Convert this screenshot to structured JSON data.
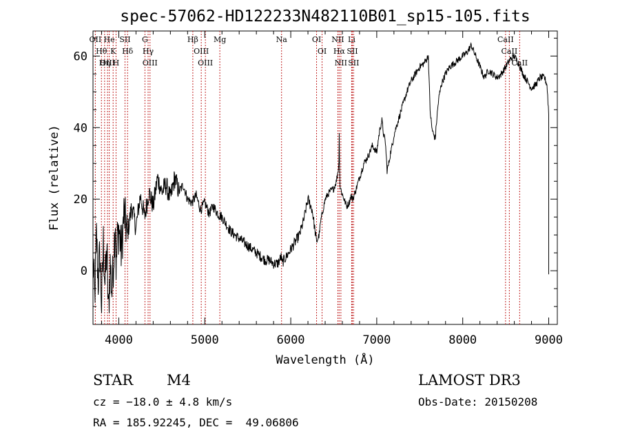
{
  "title": "spec-57062-HD122233N482110B01_sp15-105.fits",
  "info": {
    "object_class": "STAR",
    "subclass": "M4",
    "cz": "cz = −18.0 ± 4.8 km/s",
    "coords": "RA = 185.92245, DEC =  49.06806",
    "survey": "LAMOST DR3",
    "obs_date": "Obs-Date: 20150208"
  },
  "chart_data": {
    "type": "line",
    "xlabel": "Wavelength (Å)",
    "ylabel": "Flux (relative)",
    "xlim": [
      3700,
      9100
    ],
    "ylim": [
      -15,
      67
    ],
    "xticks": [
      4000,
      5000,
      6000,
      7000,
      8000,
      9000
    ],
    "yticks": [
      0,
      20,
      40,
      60
    ],
    "grid": false,
    "series": [
      {
        "color": "#000000",
        "x": [
          3700,
          3720,
          3740,
          3760,
          3780,
          3800,
          3820,
          3840,
          3860,
          3880,
          3900,
          3920,
          3940,
          3960,
          3970,
          3980,
          4000,
          4030,
          4060,
          4100,
          4150,
          4200,
          4250,
          4300,
          4350,
          4400,
          4450,
          4500,
          4550,
          4600,
          4650,
          4700,
          4750,
          4800,
          4850,
          4900,
          4950,
          5000,
          5050,
          5100,
          5150,
          5200,
          5250,
          5300,
          5350,
          5400,
          5450,
          5500,
          5550,
          5600,
          5650,
          5700,
          5750,
          5800,
          5850,
          5890,
          5900,
          5920,
          5950,
          6000,
          6050,
          6100,
          6150,
          6200,
          6250,
          6300,
          6330,
          6350,
          6400,
          6450,
          6500,
          6530,
          6550,
          6560,
          6563,
          6570,
          6590,
          6620,
          6650,
          6680,
          6700,
          6720,
          6750,
          6800,
          6850,
          6900,
          6950,
          7000,
          7020,
          7040,
          7060,
          7080,
          7100,
          7120,
          7140,
          7160,
          7180,
          7200,
          7250,
          7300,
          7350,
          7400,
          7450,
          7500,
          7550,
          7600,
          7620,
          7640,
          7660,
          7680,
          7700,
          7720,
          7750,
          7800,
          7850,
          7900,
          7950,
          8000,
          8050,
          8100,
          8150,
          8200,
          8250,
          8300,
          8350,
          8400,
          8450,
          8500,
          8550,
          8600,
          8650,
          8700,
          8750,
          8800,
          8850,
          8900,
          8950,
          8980,
          9000
        ],
        "y": [
          3,
          -8,
          10,
          -3,
          5,
          -10,
          8,
          -4,
          6,
          -12,
          2,
          -6,
          4,
          15,
          -2,
          8,
          12,
          5,
          16,
          10,
          18,
          12,
          21,
          15,
          22,
          18,
          26,
          22,
          24,
          20,
          26,
          22,
          24,
          20,
          19,
          21,
          17,
          19,
          16,
          18,
          16,
          15,
          13,
          11,
          10,
          9,
          8,
          7,
          6,
          5,
          4,
          3,
          3,
          2,
          2,
          4,
          2,
          3,
          4,
          6,
          8,
          10,
          14,
          20,
          17,
          8,
          10,
          14,
          20,
          22,
          23,
          25,
          28,
          30,
          42,
          24,
          22,
          20,
          18,
          19,
          21,
          20,
          22,
          26,
          30,
          32,
          35,
          33,
          37,
          40,
          42,
          38,
          36,
          28,
          30,
          33,
          35,
          38,
          42,
          46,
          50,
          53,
          55,
          57,
          58,
          60,
          45,
          40,
          38,
          37,
          43,
          48,
          52,
          55,
          57,
          58,
          59,
          60,
          61,
          63,
          60,
          57,
          54,
          56,
          55,
          54,
          55,
          57,
          59,
          60,
          58,
          55,
          53,
          51,
          52,
          54,
          54,
          52,
          44
        ]
      }
    ],
    "annotations": [
      {
        "label": "Hθ",
        "x": 3798
      },
      {
        "label": "OII",
        "x": 3727
      },
      {
        "label": "OIII",
        "x": 3869
      },
      {
        "label": "K",
        "x": 3934
      },
      {
        "label": "He",
        "x": 3889
      },
      {
        "label": "Hη",
        "x": 3835
      },
      {
        "label": "H",
        "x": 3968
      },
      {
        "label": "Hδ",
        "x": 4102
      },
      {
        "label": "SII",
        "x": 4072
      },
      {
        "label": "OIII",
        "x": 4363
      },
      {
        "label": "Hγ",
        "x": 4341
      },
      {
        "label": "G",
        "x": 4304
      },
      {
        "label": "OIII",
        "x": 5007
      },
      {
        "label": "OIII",
        "x": 4959
      },
      {
        "label": "Hβ",
        "x": 4861
      },
      {
        "label": "Mg",
        "x": 5175
      },
      {
        "label": "Na",
        "x": 5893
      },
      {
        "label": "OI",
        "x": 6300
      },
      {
        "label": "OI",
        "x": 6364
      },
      {
        "label": "Hα",
        "x": 6563
      },
      {
        "label": "NII",
        "x": 6548
      },
      {
        "label": "NII",
        "x": 6583
      },
      {
        "label": "SII",
        "x": 6716
      },
      {
        "label": "Li",
        "x": 6708
      },
      {
        "label": "SII",
        "x": 6731
      },
      {
        "label": "CaII",
        "x": 8542
      },
      {
        "label": "CaII",
        "x": 8498
      },
      {
        "label": "CaII",
        "x": 8662
      }
    ]
  }
}
